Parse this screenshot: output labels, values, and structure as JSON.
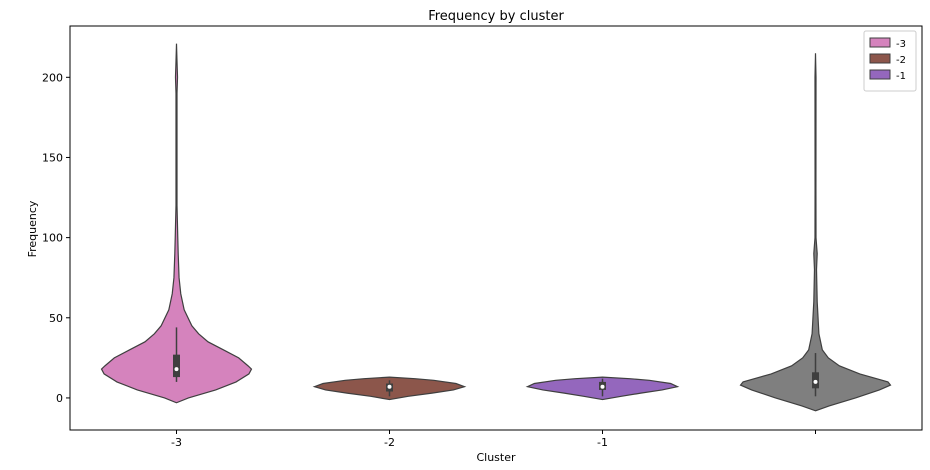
{
  "chart_data": {
    "type": "violin",
    "title": "Frequency by cluster",
    "xlabel": "Cluster",
    "ylabel": "Frequency",
    "ylim": [
      -20,
      232
    ],
    "yticks": [
      0,
      50,
      100,
      150,
      200
    ],
    "categories": [
      "-3",
      "-2",
      "-1",
      ""
    ],
    "legend": {
      "placement": "top-right",
      "entries": [
        {
          "label": "-3",
          "color": "#d583bd"
        },
        {
          "label": "-2",
          "color": "#8c564b"
        },
        {
          "label": "-1",
          "color": "#9467bd"
        }
      ]
    },
    "series": [
      {
        "category": "-3",
        "color": "#d583bd",
        "density": [
          [
            -3,
            0.0
          ],
          [
            0,
            0.14
          ],
          [
            5,
            0.46
          ],
          [
            10,
            0.7
          ],
          [
            15,
            0.85
          ],
          [
            18,
            0.88
          ],
          [
            20,
            0.84
          ],
          [
            25,
            0.73
          ],
          [
            30,
            0.55
          ],
          [
            35,
            0.37
          ],
          [
            40,
            0.26
          ],
          [
            45,
            0.18
          ],
          [
            55,
            0.09
          ],
          [
            65,
            0.05
          ],
          [
            75,
            0.03
          ],
          [
            90,
            0.02
          ],
          [
            100,
            0.015
          ],
          [
            120,
            0.006
          ],
          [
            190,
            0.006
          ],
          [
            200,
            0.012
          ],
          [
            210,
            0.006
          ],
          [
            221,
            0.0
          ]
        ],
        "box": {
          "q1": 13,
          "median": 18,
          "q3": 27,
          "whisker_low": 10,
          "whisker_high": 44
        }
      },
      {
        "category": "-2",
        "color": "#8c564b",
        "density": [
          [
            -1,
            0.0
          ],
          [
            1,
            0.22
          ],
          [
            3,
            0.5
          ],
          [
            5,
            0.75
          ],
          [
            7,
            0.88
          ],
          [
            9,
            0.78
          ],
          [
            11,
            0.52
          ],
          [
            12,
            0.3
          ],
          [
            13,
            0.0
          ]
        ],
        "box": {
          "q1": 4,
          "median": 7,
          "q3": 9,
          "whisker_low": 1,
          "whisker_high": 11
        }
      },
      {
        "category": "-1",
        "color": "#9467bd",
        "density": [
          [
            -1,
            0.0
          ],
          [
            1,
            0.22
          ],
          [
            3,
            0.45
          ],
          [
            5,
            0.7
          ],
          [
            7,
            0.88
          ],
          [
            9,
            0.8
          ],
          [
            11,
            0.55
          ],
          [
            12,
            0.32
          ],
          [
            13,
            0.0
          ]
        ],
        "box": {
          "q1": 5,
          "median": 7,
          "q3": 10,
          "whisker_low": 1,
          "whisker_high": 12
        }
      },
      {
        "category": "",
        "color": "#7f7f7f",
        "density": [
          [
            -8,
            0.0
          ],
          [
            -5,
            0.16
          ],
          [
            0,
            0.47
          ],
          [
            5,
            0.75
          ],
          [
            8,
            0.88
          ],
          [
            10,
            0.85
          ],
          [
            15,
            0.52
          ],
          [
            20,
            0.28
          ],
          [
            25,
            0.15
          ],
          [
            30,
            0.08
          ],
          [
            40,
            0.04
          ],
          [
            60,
            0.02
          ],
          [
            80,
            0.012
          ],
          [
            90,
            0.02
          ],
          [
            100,
            0.006
          ],
          [
            130,
            0.005
          ],
          [
            200,
            0.006
          ],
          [
            215,
            0.0
          ]
        ],
        "box": {
          "q1": 6,
          "median": 10,
          "q3": 16,
          "whisker_low": 1,
          "whisker_high": 28
        }
      }
    ]
  }
}
